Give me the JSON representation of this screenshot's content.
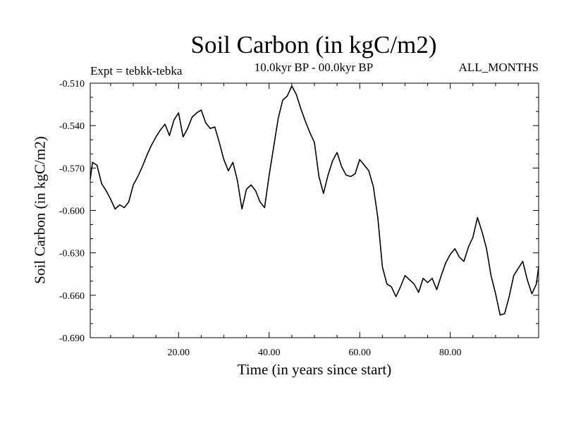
{
  "chart_data": {
    "type": "line",
    "title": "Soil Carbon (in kgC/m2)",
    "subtitle": "10.0kyr BP - 00.0kyr BP",
    "annotation_left": "Expt = tebkk-tebka",
    "annotation_right": "ALL_MONTHS",
    "xlabel": "Time (in years since start)",
    "ylabel": "Soil Carbon (in kgC/m2)",
    "xlim": [
      0.5,
      99.5
    ],
    "ylim": [
      -0.69,
      -0.51
    ],
    "x_ticks": [
      20,
      40,
      60,
      80
    ],
    "x_tick_labels": [
      "20.00",
      "40.00",
      "60.00",
      "80.00"
    ],
    "y_ticks": [
      -0.51,
      -0.54,
      -0.57,
      -0.6,
      -0.63,
      -0.66,
      -0.69
    ],
    "y_tick_labels": [
      "-0.510",
      "-0.540",
      "-0.570",
      "-0.600",
      "-0.630",
      "-0.660",
      "-0.690"
    ],
    "grid": false,
    "series": [
      {
        "name": "Soil Carbon",
        "x": [
          0.5,
          1,
          2,
          3,
          4,
          5,
          6,
          7,
          8,
          9,
          10,
          11,
          12,
          13,
          14,
          15,
          16,
          17,
          18,
          19,
          20,
          21,
          22,
          23,
          24,
          25,
          26,
          27,
          28,
          29,
          30,
          31,
          32,
          33,
          34,
          35,
          36,
          37,
          38,
          39,
          40,
          41,
          42,
          43,
          44,
          45,
          46,
          47,
          48,
          49,
          50,
          51,
          52,
          53,
          54,
          55,
          56,
          57,
          58,
          59,
          60,
          61,
          62,
          63,
          64,
          65,
          66,
          67,
          68,
          69,
          70,
          71,
          72,
          73,
          74,
          75,
          76,
          77,
          78,
          79,
          80,
          81,
          82,
          83,
          84,
          85,
          86,
          87,
          88,
          89,
          90,
          91,
          92,
          93,
          94,
          95,
          96,
          97,
          98,
          99,
          99.5
        ],
        "values": [
          -0.578,
          -0.566,
          -0.568,
          -0.581,
          -0.586,
          -0.592,
          -0.599,
          -0.596,
          -0.598,
          -0.594,
          -0.582,
          -0.576,
          -0.569,
          -0.561,
          -0.554,
          -0.548,
          -0.543,
          -0.539,
          -0.547,
          -0.536,
          -0.531,
          -0.548,
          -0.542,
          -0.534,
          -0.531,
          -0.529,
          -0.538,
          -0.542,
          -0.541,
          -0.552,
          -0.564,
          -0.572,
          -0.566,
          -0.579,
          -0.599,
          -0.585,
          -0.582,
          -0.586,
          -0.594,
          -0.598,
          -0.575,
          -0.555,
          -0.535,
          -0.522,
          -0.519,
          -0.512,
          -0.518,
          -0.528,
          -0.537,
          -0.545,
          -0.552,
          -0.576,
          -0.588,
          -0.575,
          -0.565,
          -0.559,
          -0.569,
          -0.575,
          -0.576,
          -0.574,
          -0.564,
          -0.568,
          -0.572,
          -0.583,
          -0.605,
          -0.64,
          -0.652,
          -0.654,
          -0.661,
          -0.654,
          -0.646,
          -0.649,
          -0.652,
          -0.658,
          -0.648,
          -0.651,
          -0.648,
          -0.656,
          -0.646,
          -0.637,
          -0.631,
          -0.627,
          -0.633,
          -0.636,
          -0.626,
          -0.619,
          -0.605,
          -0.615,
          -0.627,
          -0.646,
          -0.659,
          -0.674,
          -0.673,
          -0.661,
          -0.646,
          -0.641,
          -0.636,
          -0.649,
          -0.659,
          -0.652,
          -0.64
        ]
      }
    ]
  }
}
